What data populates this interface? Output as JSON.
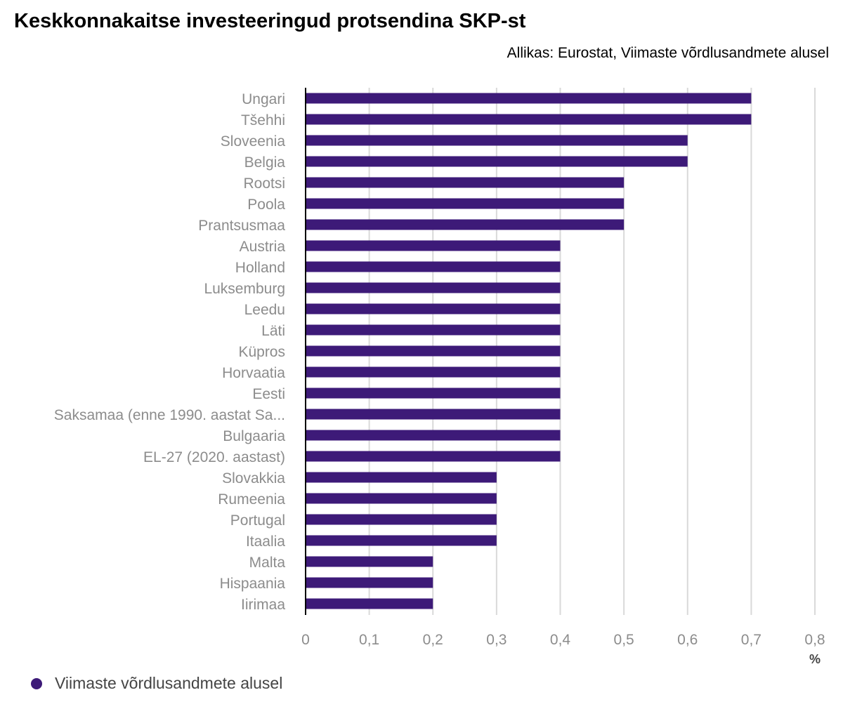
{
  "chart_data": {
    "type": "bar",
    "orientation": "horizontal",
    "title": "Keskkonnakaitse investeeringud protsendina SKP-st",
    "subtitle": "Allikas: Eurostat, Viimaste võrdlusandmete alusel",
    "xlabel": "%",
    "xlim": [
      0,
      0.8
    ],
    "xticks": [
      {
        "value": 0,
        "label": "0"
      },
      {
        "value": 0.1,
        "label": "0,1"
      },
      {
        "value": 0.2,
        "label": "0,2"
      },
      {
        "value": 0.3,
        "label": "0,3"
      },
      {
        "value": 0.4,
        "label": "0,4"
      },
      {
        "value": 0.5,
        "label": "0,5"
      },
      {
        "value": 0.6,
        "label": "0,6"
      },
      {
        "value": 0.7,
        "label": "0,7"
      },
      {
        "value": 0.8,
        "label": "0,8"
      }
    ],
    "grid": true,
    "legend_position": "bottom-left",
    "categories": [
      "Ungari",
      "Tšehhi",
      "Sloveenia",
      "Belgia",
      "Rootsi",
      "Poola",
      "Prantsusmaa",
      "Austria",
      "Holland",
      "Luksemburg",
      "Leedu",
      "Läti",
      "Küpros",
      "Horvaatia",
      "Eesti",
      "Saksamaa (enne 1990. aastat Sa...",
      "Bulgaaria",
      "EL-27 (2020. aastast)",
      "Slovakkia",
      "Rumeenia",
      "Portugal",
      "Itaalia",
      "Malta",
      "Hispaania",
      "Iirimaa"
    ],
    "series": [
      {
        "name": "Viimaste võrdlusandmete alusel",
        "color": "#3d1a78",
        "values": [
          0.7,
          0.7,
          0.6,
          0.6,
          0.5,
          0.5,
          0.5,
          0.4,
          0.4,
          0.4,
          0.4,
          0.4,
          0.4,
          0.4,
          0.4,
          0.4,
          0.4,
          0.4,
          0.3,
          0.3,
          0.3,
          0.3,
          0.2,
          0.2,
          0.2
        ]
      }
    ]
  }
}
